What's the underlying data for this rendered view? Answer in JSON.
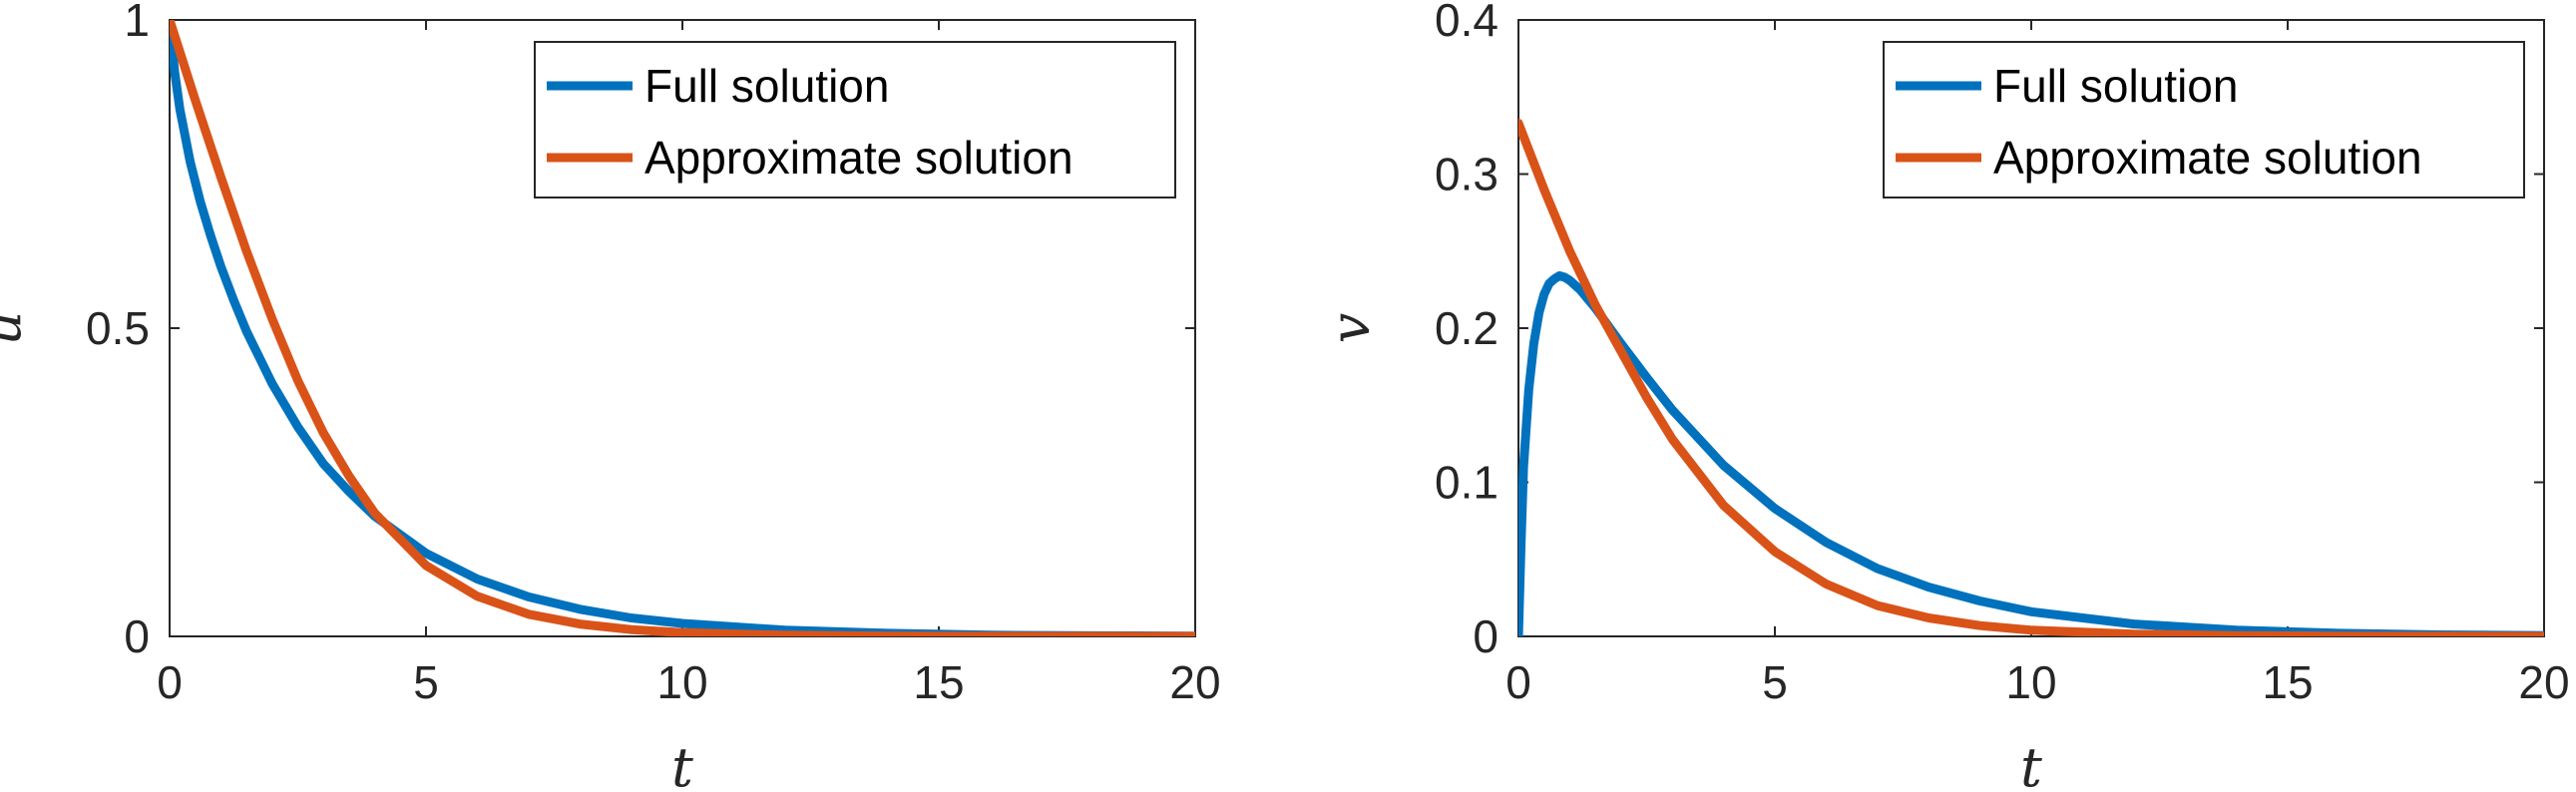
{
  "chart_data": [
    {
      "type": "line",
      "xlabel": "t",
      "ylabel": "u",
      "xlim": [
        0,
        20
      ],
      "ylim": [
        0,
        1
      ],
      "xticks": [
        "0",
        "5",
        "10",
        "15",
        "20"
      ],
      "yticks": [
        "0",
        "0.5",
        "1"
      ],
      "ytick_values": [
        0,
        0.5,
        1
      ],
      "legend_position": "top-right",
      "grid": false,
      "series": [
        {
          "name": "Full solution",
          "color": "#0072BD",
          "x": [
            0,
            0.1,
            0.2,
            0.4,
            0.6,
            0.8,
            1,
            1.25,
            1.5,
            2,
            2.5,
            3,
            3.5,
            4,
            5,
            6,
            7,
            8,
            9,
            10,
            12,
            14,
            16,
            18,
            20
          ],
          "y": [
            1,
            0.915,
            0.855,
            0.77,
            0.705,
            0.65,
            0.6,
            0.545,
            0.495,
            0.41,
            0.34,
            0.28,
            0.235,
            0.195,
            0.135,
            0.093,
            0.064,
            0.044,
            0.03,
            0.021,
            0.01,
            0.005,
            0.002,
            0.001,
            0.0005
          ]
        },
        {
          "name": "Approximate solution",
          "color": "#D95319",
          "x": [
            0,
            0.5,
            1,
            1.5,
            2,
            2.5,
            3,
            3.5,
            4,
            5,
            6,
            7,
            8,
            9,
            10,
            12,
            14,
            16,
            18,
            20
          ],
          "y": [
            1,
            0.87,
            0.745,
            0.625,
            0.515,
            0.415,
            0.33,
            0.26,
            0.2,
            0.115,
            0.065,
            0.036,
            0.02,
            0.011,
            0.006,
            0.002,
            0.0007,
            0.0002,
            0.0001,
            0
          ]
        }
      ]
    },
    {
      "type": "line",
      "xlabel": "t",
      "ylabel": "v",
      "xlim": [
        0,
        20
      ],
      "ylim": [
        0,
        0.4
      ],
      "xticks": [
        "0",
        "5",
        "10",
        "15",
        "20"
      ],
      "yticks": [
        "0",
        "0.1",
        "0.2",
        "0.3",
        "0.4"
      ],
      "ytick_values": [
        0,
        0.1,
        0.2,
        0.3,
        0.4
      ],
      "legend_position": "top-right",
      "grid": false,
      "series": [
        {
          "name": "Full solution",
          "color": "#0072BD",
          "x": [
            0,
            0.05,
            0.1,
            0.2,
            0.3,
            0.4,
            0.5,
            0.6,
            0.7,
            0.8,
            0.9,
            1,
            1.2,
            1.5,
            2,
            2.5,
            3,
            4,
            5,
            6,
            7,
            8,
            9,
            10,
            12,
            14,
            16,
            18,
            20
          ],
          "y": [
            0,
            0.06,
            0.11,
            0.16,
            0.19,
            0.21,
            0.222,
            0.229,
            0.232,
            0.234,
            0.233,
            0.231,
            0.225,
            0.213,
            0.19,
            0.168,
            0.147,
            0.111,
            0.083,
            0.061,
            0.044,
            0.032,
            0.023,
            0.016,
            0.008,
            0.004,
            0.002,
            0.001,
            0.0005
          ]
        },
        {
          "name": "Approximate solution",
          "color": "#D95319",
          "x": [
            0,
            0.5,
            1,
            1.5,
            2,
            2.5,
            3,
            4,
            5,
            6,
            7,
            8,
            9,
            10,
            12,
            14,
            16,
            18,
            20
          ],
          "y": [
            0.333,
            0.29,
            0.25,
            0.215,
            0.185,
            0.155,
            0.128,
            0.085,
            0.055,
            0.034,
            0.02,
            0.012,
            0.007,
            0.004,
            0.0015,
            0.0005,
            0.0002,
            0.0001,
            0
          ]
        }
      ]
    }
  ]
}
